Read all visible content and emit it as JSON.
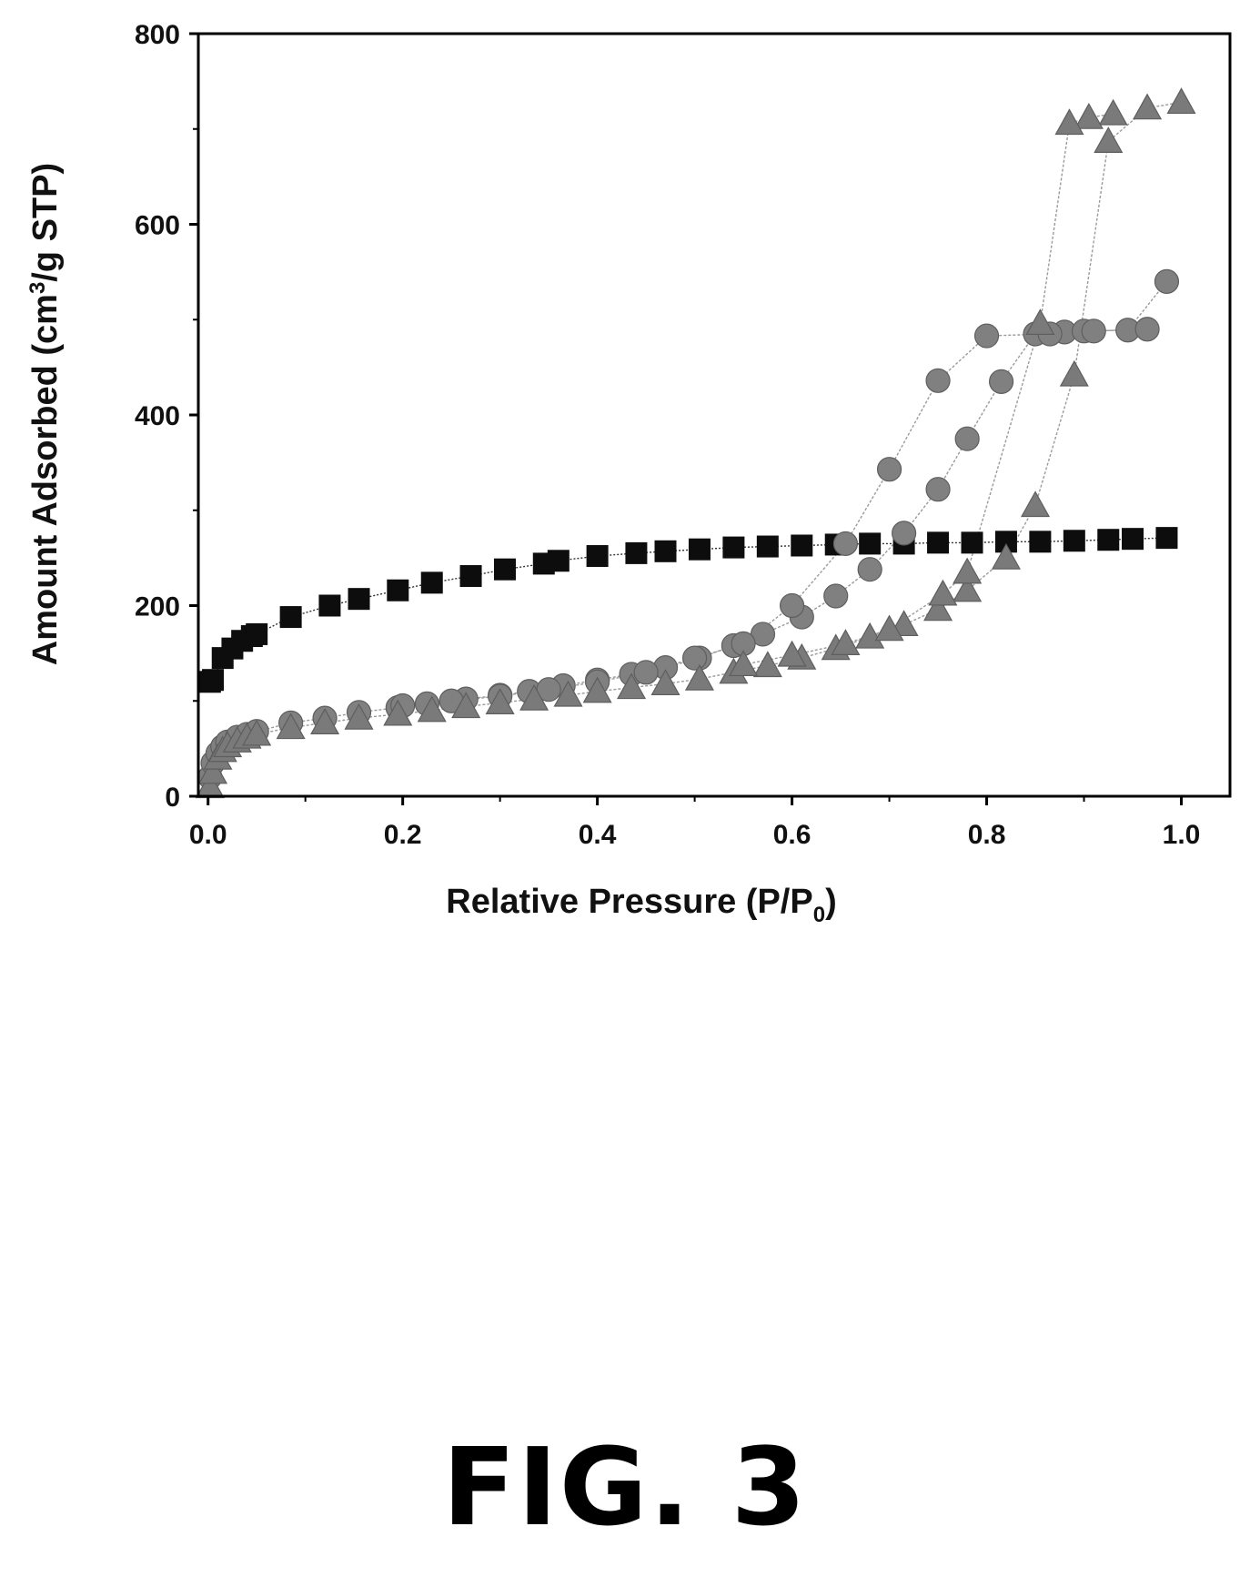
{
  "chart_data": {
    "type": "scatter",
    "title": "",
    "xlabel": "Relative Pressure (P/P0)",
    "ylabel": "Amount Adsorbed (cm3/g STP)",
    "xlim": [
      -0.01,
      1.05
    ],
    "ylim": [
      0,
      800
    ],
    "x_ticks": [
      0.0,
      0.2,
      0.4,
      0.6,
      0.8,
      1.0
    ],
    "x_tick_labels": [
      "0.0",
      "0.2",
      "0.4",
      "0.6",
      "0.8",
      "1.0"
    ],
    "y_ticks": [
      0,
      200,
      400,
      600,
      800
    ],
    "y_tick_labels": [
      "0",
      "200",
      "400",
      "600",
      "800"
    ],
    "grid": false,
    "legend": "none",
    "series": [
      {
        "marker": "square",
        "color": "#0d0d0d",
        "adsorption": {
          "x": [
            0.002,
            0.005,
            0.015,
            0.025,
            0.035,
            0.045,
            0.05,
            0.085,
            0.125,
            0.155,
            0.195,
            0.23,
            0.27,
            0.305,
            0.345,
            0.36,
            0.4,
            0.44,
            0.47,
            0.505,
            0.54,
            0.575,
            0.61,
            0.645,
            0.68,
            0.715,
            0.75,
            0.785,
            0.82,
            0.855,
            0.89,
            0.925,
            0.95,
            0.985
          ],
          "y": [
            120,
            122,
            145,
            155,
            163,
            168,
            170,
            188,
            200,
            207,
            216,
            224,
            231,
            238,
            244,
            247,
            252,
            255,
            257,
            259,
            261,
            262,
            263,
            264,
            265,
            265,
            266,
            266,
            267,
            267,
            268,
            269,
            270,
            271
          ]
        },
        "desorption": {
          "x": [],
          "y": []
        }
      },
      {
        "marker": "circle",
        "color": "#808080",
        "adsorption": {
          "x": [
            0.002,
            0.005,
            0.01,
            0.015,
            0.02,
            0.03,
            0.04,
            0.05,
            0.085,
            0.12,
            0.155,
            0.195,
            0.225,
            0.265,
            0.3,
            0.33,
            0.365,
            0.4,
            0.435,
            0.47,
            0.505,
            0.54,
            0.57,
            0.61,
            0.645,
            0.68,
            0.715,
            0.75,
            0.78,
            0.815,
            0.85,
            0.88,
            0.9,
            0.945,
            0.985
          ],
          "y": [
            20,
            35,
            45,
            52,
            57,
            62,
            65,
            68,
            77,
            82,
            88,
            93,
            97,
            102,
            106,
            110,
            116,
            122,
            128,
            135,
            145,
            158,
            170,
            188,
            210,
            238,
            276,
            322,
            375,
            435,
            485,
            487,
            488,
            489,
            540
          ]
        },
        "desorption": {
          "x": [
            0.965,
            0.91,
            0.865,
            0.8,
            0.75,
            0.7,
            0.655,
            0.6,
            0.55,
            0.5,
            0.45,
            0.4,
            0.35,
            0.3,
            0.25,
            0.2
          ],
          "y": [
            490,
            488,
            485,
            483,
            436,
            343,
            265,
            200,
            160,
            145,
            130,
            120,
            112,
            105,
            100,
            95
          ]
        }
      },
      {
        "marker": "triangle",
        "color": "#7a7a7a",
        "adsorption": {
          "x": [
            0.002,
            0.005,
            0.01,
            0.015,
            0.02,
            0.03,
            0.04,
            0.05,
            0.085,
            0.12,
            0.155,
            0.195,
            0.23,
            0.265,
            0.3,
            0.335,
            0.37,
            0.4,
            0.435,
            0.47,
            0.505,
            0.54,
            0.575,
            0.61,
            0.645,
            0.68,
            0.715,
            0.75,
            0.78,
            0.82,
            0.85,
            0.89,
            0.925,
            0.965,
            1.0
          ],
          "y": [
            10,
            25,
            40,
            48,
            53,
            58,
            62,
            65,
            72,
            77,
            82,
            86,
            90,
            94,
            98,
            102,
            106,
            110,
            114,
            118,
            123,
            130,
            137,
            145,
            155,
            167,
            180,
            196,
            216,
            250,
            305,
            442,
            687,
            722,
            728
          ]
        },
        "desorption": {
          "x": [
            0.93,
            0.905,
            0.885,
            0.855,
            0.78,
            0.755,
            0.7,
            0.655,
            0.6,
            0.55
          ],
          "y": [
            716,
            712,
            706,
            496,
            235,
            212,
            175,
            160,
            148,
            138
          ]
        }
      }
    ]
  },
  "caption": "FIG. 3"
}
